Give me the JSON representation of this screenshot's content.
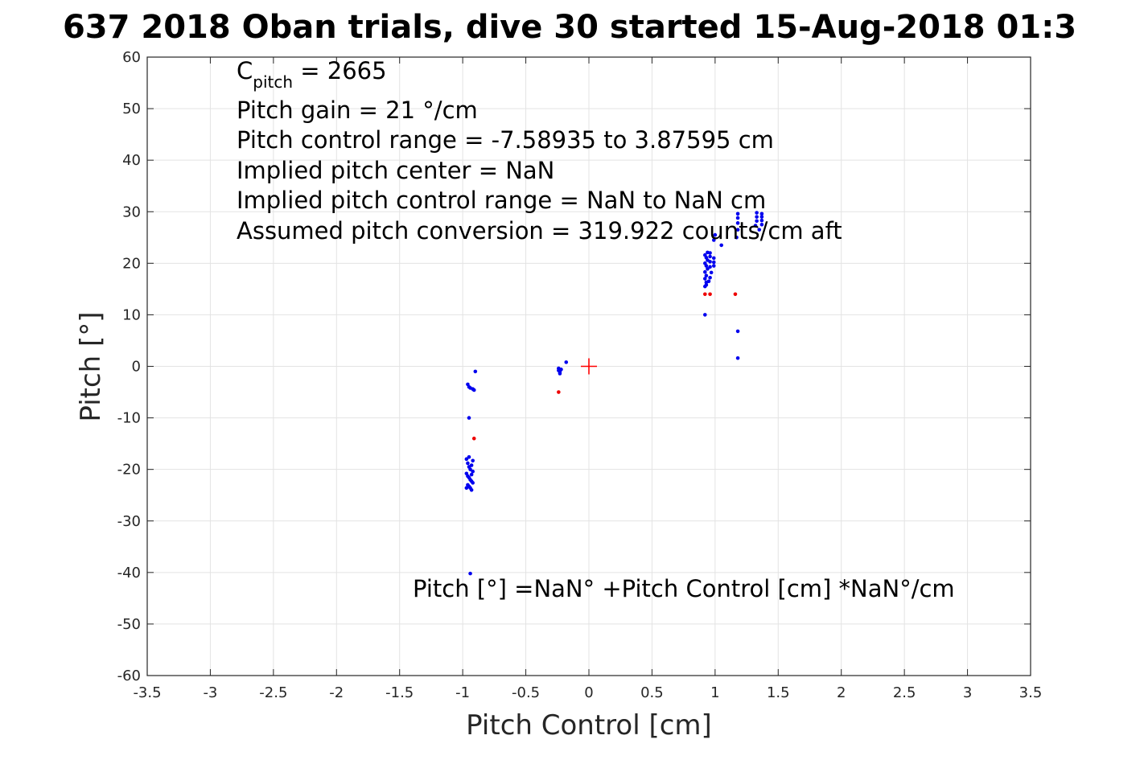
{
  "chart_data": {
    "type": "scatter",
    "title": "637 2018 Oban trials, dive 30 started 15-Aug-2018 01:3",
    "xlabel": "Pitch Control [cm]",
    "ylabel": "Pitch [°]",
    "xlim": [
      -3.5,
      3.5
    ],
    "ylim": [
      -60,
      60
    ],
    "grid": true,
    "xticks": [
      -3.5,
      -3,
      -2.5,
      -2,
      -1.5,
      -1,
      -0.5,
      0,
      0.5,
      1,
      1.5,
      2,
      2.5,
      3,
      3.5
    ],
    "xtick_labels": [
      "-3.5",
      "-3",
      "-2.5",
      "-2",
      "-1.5",
      "-1",
      "-0.5",
      "0",
      "0.5",
      "1",
      "1.5",
      "2",
      "2.5",
      "3",
      "3.5"
    ],
    "yticks": [
      -60,
      -50,
      -40,
      -30,
      -20,
      -10,
      0,
      10,
      20,
      30,
      40,
      50,
      60
    ],
    "ytick_labels": [
      "-60",
      "-50",
      "-40",
      "-30",
      "-20",
      "-10",
      "0",
      "10",
      "20",
      "30",
      "40",
      "50",
      "60"
    ],
    "annotations": {
      "c_main": "C",
      "c_sub": "pitch",
      "c_value": " = 2665",
      "pitch_gain": "Pitch gain = 21 °/cm",
      "control_range": "Pitch control range = -7.58935 to 3.87595 cm",
      "implied_center": "Implied pitch center = NaN",
      "implied_range": "Implied pitch control range = NaN to NaN cm",
      "conversion": "Assumed pitch conversion = 319.922 counts/cm aft",
      "fit": "Pitch [°] =NaN° +Pitch Control [cm] *NaN°/cm"
    },
    "series": [
      {
        "color": "#0000ee",
        "points": [
          [
            -0.96,
            -3.5
          ],
          [
            -0.95,
            -4.0
          ],
          [
            -0.94,
            -4.2
          ],
          [
            -0.92,
            -4.4
          ],
          [
            -0.91,
            -4.6
          ],
          [
            -0.9,
            -1.0
          ],
          [
            -0.95,
            -10.0
          ],
          [
            -0.97,
            -18.0
          ],
          [
            -0.96,
            -18.8
          ],
          [
            -0.95,
            -19.5
          ],
          [
            -0.94,
            -20.0
          ],
          [
            -0.93,
            -19.2
          ],
          [
            -0.92,
            -20.4
          ],
          [
            -0.97,
            -20.8
          ],
          [
            -0.96,
            -21.3
          ],
          [
            -0.95,
            -21.6
          ],
          [
            -0.94,
            -22.0
          ],
          [
            -0.93,
            -22.3
          ],
          [
            -0.92,
            -22.6
          ],
          [
            -0.96,
            -23.0
          ],
          [
            -0.95,
            -23.3
          ],
          [
            -0.94,
            -23.6
          ],
          [
            -0.93,
            -21.0
          ],
          [
            -0.92,
            -18.3
          ],
          [
            -0.95,
            -17.6
          ],
          [
            -0.97,
            -23.6
          ],
          [
            -0.93,
            -24.0
          ],
          [
            -0.94,
            -40.2
          ],
          [
            -0.24,
            -0.4
          ],
          [
            -0.24,
            -0.8
          ],
          [
            -0.23,
            -1.1
          ],
          [
            -0.22,
            -0.6
          ],
          [
            -0.23,
            -1.4
          ],
          [
            -0.18,
            0.8
          ],
          [
            0.92,
            10.0
          ],
          [
            0.92,
            15.5
          ],
          [
            0.93,
            15.8
          ],
          [
            0.92,
            17.0
          ],
          [
            0.93,
            17.6
          ],
          [
            0.92,
            18.3
          ],
          [
            0.94,
            18.9
          ],
          [
            0.93,
            19.5
          ],
          [
            0.92,
            20.0
          ],
          [
            0.94,
            20.6
          ],
          [
            0.93,
            21.1
          ],
          [
            0.92,
            21.6
          ],
          [
            0.94,
            22.1
          ],
          [
            0.96,
            22.0
          ],
          [
            0.96,
            21.3
          ],
          [
            0.96,
            20.3
          ],
          [
            0.96,
            19.3
          ],
          [
            0.97,
            18.2
          ],
          [
            0.96,
            17.2
          ],
          [
            0.99,
            21.0
          ],
          [
            0.99,
            20.2
          ],
          [
            0.99,
            19.5
          ],
          [
            0.95,
            16.5
          ],
          [
            0.93,
            16.3
          ],
          [
            0.99,
            24.5
          ],
          [
            1.0,
            25.5
          ],
          [
            1.05,
            23.5
          ],
          [
            1.17,
            25.0
          ],
          [
            1.18,
            26.5
          ],
          [
            1.18,
            27.8
          ],
          [
            1.18,
            28.8
          ],
          [
            1.18,
            29.6
          ],
          [
            1.32,
            27.3
          ],
          [
            1.33,
            28.2
          ],
          [
            1.33,
            29.0
          ],
          [
            1.33,
            29.8
          ],
          [
            1.35,
            26.5
          ],
          [
            1.37,
            27.5
          ],
          [
            1.37,
            28.3
          ],
          [
            1.37,
            29.0
          ],
          [
            1.37,
            29.6
          ],
          [
            1.18,
            6.8
          ],
          [
            1.18,
            1.6
          ]
        ]
      },
      {
        "color": "#ee0000",
        "points": [
          [
            -0.91,
            -14.0
          ],
          [
            -0.24,
            -5.0
          ],
          [
            0.92,
            14.0
          ],
          [
            0.96,
            14.0
          ],
          [
            1.16,
            14.0
          ]
        ]
      }
    ],
    "center_marker": {
      "x": 0,
      "y": 0,
      "color": "#ff0000"
    }
  }
}
